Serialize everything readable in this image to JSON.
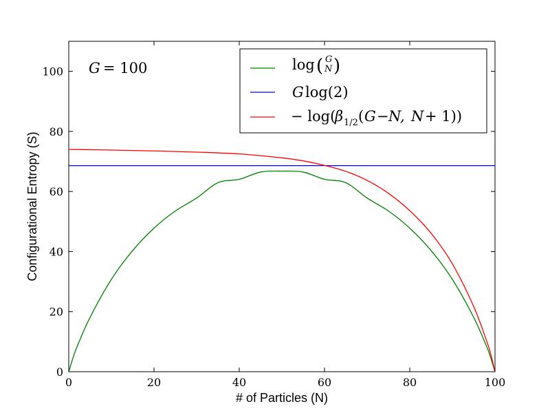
{
  "chart_data": {
    "type": "line",
    "xlabel": "# of Particles (N)",
    "ylabel": "Configurational Entropy (S)",
    "xlim": [
      0,
      100
    ],
    "ylim": [
      0,
      110
    ],
    "xticks": [
      0,
      20,
      40,
      60,
      80,
      100
    ],
    "yticks": [
      0,
      20,
      40,
      60,
      80,
      100
    ],
    "xtick_labels": [
      "0",
      "20",
      "40",
      "60",
      "80",
      "100"
    ],
    "ytick_labels": [
      "0",
      "20",
      "40",
      "60",
      "80",
      "100"
    ],
    "grid": false,
    "legend_position": "top-right",
    "annotation": "G = 100",
    "series": [
      {
        "name": "log(G choose N)",
        "color": "#008000",
        "x": [
          0,
          1,
          2,
          5,
          10,
          15,
          20,
          25,
          30,
          35,
          40,
          45,
          50,
          55,
          60,
          65,
          70,
          75,
          80,
          85,
          90,
          95,
          98,
          99,
          100
        ],
        "y": [
          0,
          4.61,
          8.5,
          18.09,
          30.74,
          40.35,
          47.79,
          53.51,
          57.82,
          62.94,
          64.05,
          66.47,
          66.78,
          66.47,
          64.05,
          62.94,
          57.82,
          53.51,
          47.79,
          40.35,
          30.74,
          18.09,
          8.5,
          4.61,
          0
        ]
      },
      {
        "name": "G log(2)",
        "color": "#0000ff",
        "x": [
          0,
          100
        ],
        "y": [
          68.6,
          68.6
        ]
      },
      {
        "name": "-log(β_{1/2}(G-N, N+1))",
        "color": "#ff0000",
        "x": [
          0,
          10,
          20,
          30,
          40,
          50,
          55,
          60,
          65,
          70,
          75,
          80,
          85,
          90,
          95,
          98,
          99,
          100
        ],
        "y": [
          74.0,
          73.8,
          73.5,
          73.1,
          72.5,
          71.2,
          70.2,
          68.7,
          66.7,
          63.7,
          59.4,
          53.6,
          46.1,
          35.9,
          21.7,
          10.4,
          5.8,
          0
        ]
      }
    ]
  },
  "legend": {
    "labels": [
      "log(G/N)",
      "G log(2)",
      "−log(β1/2(G−N, N+1))"
    ]
  }
}
